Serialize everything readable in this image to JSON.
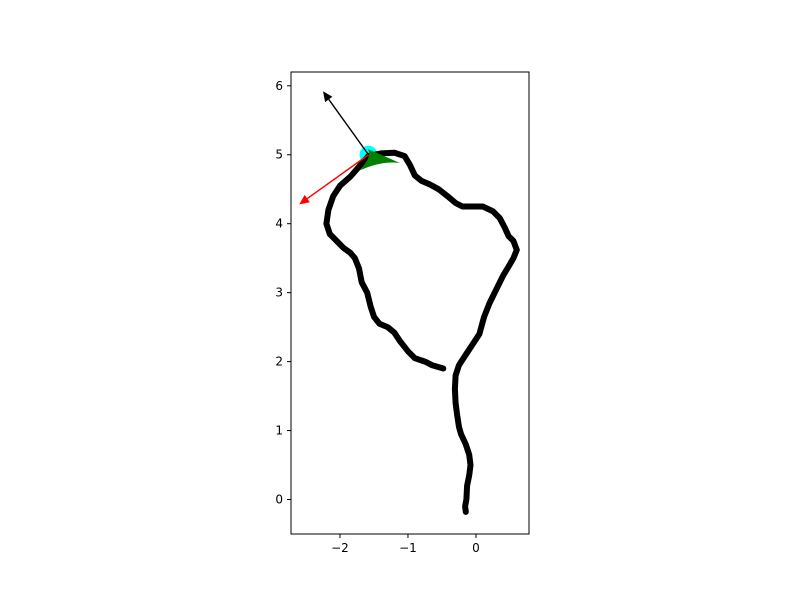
{
  "chart_data": {
    "type": "line",
    "title": "",
    "xlabel": "",
    "ylabel": "",
    "xlim": [
      -2.72,
      0.78
    ],
    "ylim": [
      -0.5,
      6.2
    ],
    "xticks": [
      -2,
      -1,
      0
    ],
    "xtick_labels": [
      "−2",
      "−1",
      "0"
    ],
    "yticks": [
      0,
      1,
      2,
      3,
      4,
      5,
      6
    ],
    "ytick_labels": [
      "0",
      "1",
      "2",
      "3",
      "4",
      "5",
      "6"
    ],
    "grid": false,
    "aspect": "equal",
    "series": [
      {
        "color": "#000000",
        "style": "thick-line",
        "points": [
          [
            -0.15,
            -0.18
          ],
          [
            -0.16,
            -0.1
          ],
          [
            -0.14,
            0.0
          ],
          [
            -0.13,
            0.2
          ],
          [
            -0.1,
            0.35
          ],
          [
            -0.08,
            0.5
          ],
          [
            -0.1,
            0.65
          ],
          [
            -0.15,
            0.8
          ],
          [
            -0.22,
            0.95
          ],
          [
            -0.25,
            1.05
          ],
          [
            -0.28,
            1.25
          ],
          [
            -0.3,
            1.4
          ],
          [
            -0.31,
            1.6
          ],
          [
            -0.3,
            1.8
          ],
          [
            -0.25,
            1.95
          ],
          [
            -0.15,
            2.1
          ],
          [
            -0.05,
            2.25
          ],
          [
            0.05,
            2.4
          ],
          [
            0.12,
            2.65
          ],
          [
            0.2,
            2.85
          ],
          [
            0.3,
            3.05
          ],
          [
            0.4,
            3.25
          ],
          [
            0.48,
            3.38
          ],
          [
            0.55,
            3.5
          ],
          [
            0.6,
            3.62
          ],
          [
            0.55,
            3.75
          ],
          [
            0.48,
            3.82
          ],
          [
            0.42,
            3.95
          ],
          [
            0.35,
            4.08
          ],
          [
            0.25,
            4.18
          ],
          [
            0.1,
            4.25
          ],
          [
            -0.05,
            4.25
          ],
          [
            -0.2,
            4.25
          ],
          [
            -0.3,
            4.3
          ],
          [
            -0.42,
            4.4
          ],
          [
            -0.55,
            4.5
          ],
          [
            -0.68,
            4.57
          ],
          [
            -0.8,
            4.62
          ],
          [
            -0.9,
            4.7
          ],
          [
            -0.97,
            4.85
          ],
          [
            -1.05,
            4.98
          ],
          [
            -1.2,
            5.03
          ],
          [
            -1.4,
            5.02
          ],
          [
            -1.58,
            4.98
          ],
          [
            -1.7,
            4.85
          ],
          [
            -1.85,
            4.68
          ],
          [
            -2.0,
            4.55
          ],
          [
            -2.1,
            4.4
          ],
          [
            -2.17,
            4.2
          ],
          [
            -2.2,
            4.0
          ],
          [
            -2.15,
            3.85
          ],
          [
            -2.05,
            3.75
          ],
          [
            -1.95,
            3.65
          ],
          [
            -1.85,
            3.58
          ],
          [
            -1.78,
            3.5
          ],
          [
            -1.72,
            3.35
          ],
          [
            -1.68,
            3.15
          ],
          [
            -1.6,
            3.0
          ],
          [
            -1.55,
            2.8
          ],
          [
            -1.5,
            2.65
          ],
          [
            -1.42,
            2.55
          ],
          [
            -1.3,
            2.5
          ],
          [
            -1.2,
            2.42
          ],
          [
            -1.12,
            2.3
          ],
          [
            -1.0,
            2.15
          ],
          [
            -0.9,
            2.05
          ],
          [
            -0.75,
            2.0
          ],
          [
            -0.65,
            1.95
          ],
          [
            -0.55,
            1.92
          ],
          [
            -0.48,
            1.9
          ]
        ]
      }
    ],
    "markers": [
      {
        "name": "current-position",
        "shape": "circle",
        "color": "#00ffff",
        "x": -1.58,
        "y": 5.0
      },
      {
        "name": "heading-arrowhead",
        "shape": "arrowhead",
        "color": "#008000",
        "x": -1.58,
        "y": 5.0,
        "tip": [
          -1.12,
          4.88
        ]
      }
    ],
    "arrows": [
      {
        "name": "black-arrow",
        "color": "#000000",
        "from": [
          -1.58,
          5.0
        ],
        "to": [
          -2.25,
          5.92
        ]
      },
      {
        "name": "red-arrow",
        "color": "#ff0000",
        "from": [
          -1.58,
          5.0
        ],
        "to": [
          -2.6,
          4.28
        ]
      }
    ]
  }
}
